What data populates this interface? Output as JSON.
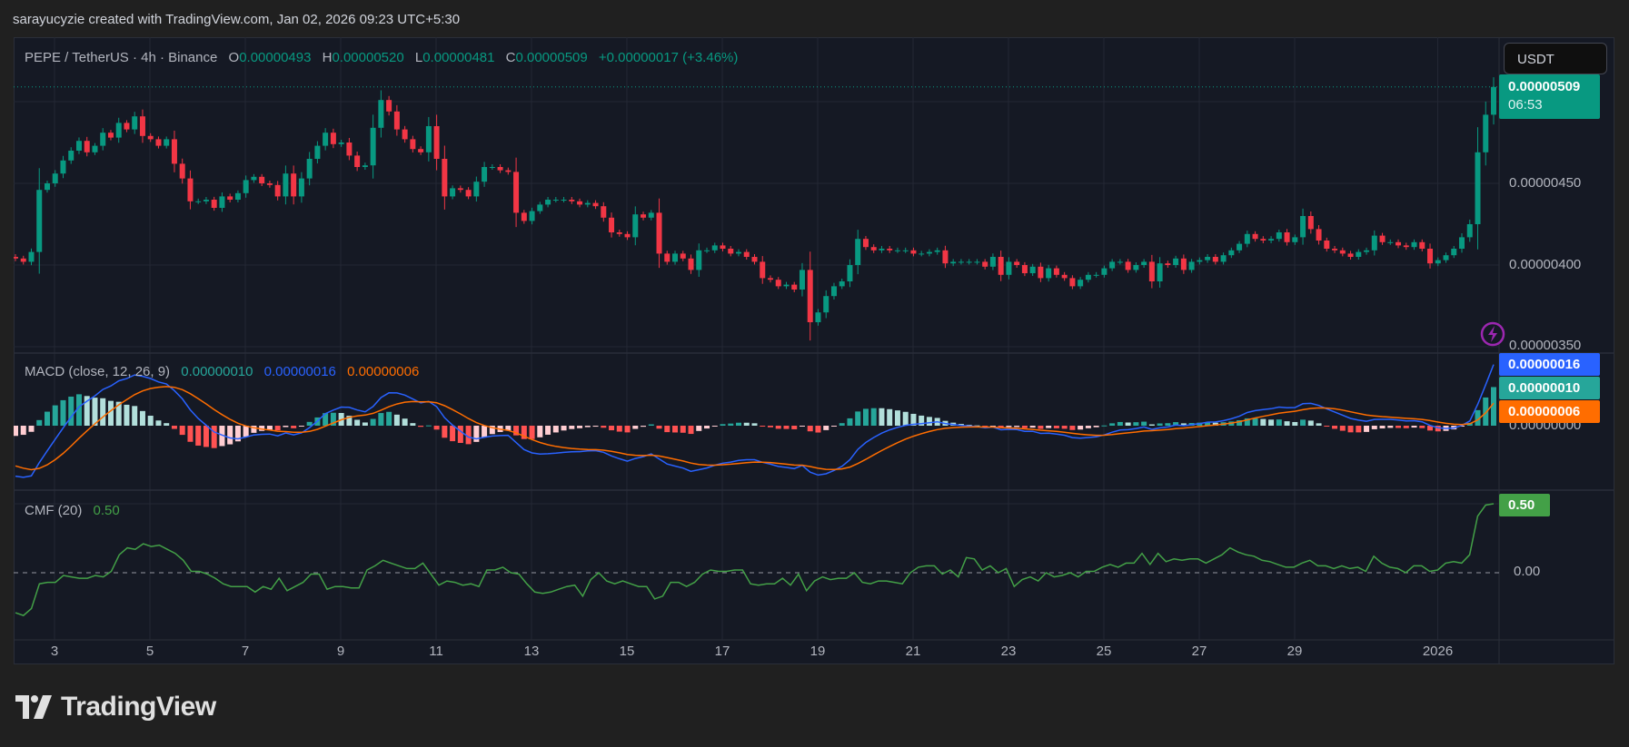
{
  "credit": "sarayucyzie created with TradingView.com, Jan 02, 2026 09:23 UTC+5:30",
  "legend": {
    "symbol": "PEPE / TetherUS · 4h · Binance",
    "o_label": "O",
    "o": "0.00000493",
    "h_label": "H",
    "h": "0.00000520",
    "l_label": "L",
    "l": "0.00000481",
    "c_label": "C",
    "c": "0.00000509",
    "change": "+0.00000017 (+3.46%)"
  },
  "currency_button": "USDT",
  "last_price": {
    "value": "0.00000509",
    "countdown": "06:53"
  },
  "price_axis": [
    "0.00000450",
    "0.00000400",
    "0.00000350"
  ],
  "macd": {
    "title": "MACD (close, 12, 26, 9)",
    "histogram": "0.00000010",
    "macd": "0.00000016",
    "signal": "0.00000006",
    "axis_zero": "0.00000000"
  },
  "cmf": {
    "title": "CMF (20)",
    "value": "0.50",
    "axis_zero": "0.00"
  },
  "time_axis": [
    "3",
    "5",
    "7",
    "9",
    "11",
    "13",
    "15",
    "17",
    "19",
    "21",
    "23",
    "25",
    "27",
    "29",
    "2026"
  ],
  "logo": "TradingView",
  "colors": {
    "up": "#089981",
    "down": "#f23645",
    "macd": "#2962ff",
    "signal": "#ff6d00",
    "hist_up_strong": "#26a69a",
    "hist_up_weak": "#b2dfdb",
    "hist_down_weak": "#ffcdd2",
    "hist_down_strong": "#ff5252",
    "cmf": "#43a047",
    "background": "#151924",
    "grid": "#232734",
    "alert": "#9c27b0"
  },
  "chart_data": [
    {
      "type": "candlestick",
      "interval": "4h",
      "x_range": [
        "Dec 2, 2025",
        "Jan 2, 2026"
      ],
      "ylim": [
        3.4e-06,
        5.3e-06
      ],
      "first_open": 4.05e-06,
      "close": [
        4.04e-06,
        4.02e-06,
        4.08e-06,
        4.46e-06,
        4.5e-06,
        4.56e-06,
        4.64e-06,
        4.7e-06,
        4.76e-06,
        4.69e-06,
        4.73e-06,
        4.81e-06,
        4.78e-06,
        4.87e-06,
        4.83e-06,
        4.91e-06,
        4.79e-06,
        4.77e-06,
        4.73e-06,
        4.77e-06,
        4.62e-06,
        4.53e-06,
        4.39e-06,
        4.39e-06,
        4.4e-06,
        4.35e-06,
        4.42e-06,
        4.4e-06,
        4.44e-06,
        4.52e-06,
        4.54e-06,
        4.5e-06,
        4.49e-06,
        4.42e-06,
        4.56e-06,
        4.42e-06,
        4.53e-06,
        4.65e-06,
        4.73e-06,
        4.81e-06,
        4.74e-06,
        4.75e-06,
        4.67e-06,
        4.6e-06,
        4.61e-06,
        4.84e-06,
        5.01e-06,
        4.94e-06,
        4.83e-06,
        4.77e-06,
        4.71e-06,
        4.69e-06,
        4.85e-06,
        4.65e-06,
        4.42e-06,
        4.47e-06,
        4.46e-06,
        4.42e-06,
        4.51e-06,
        4.6e-06,
        4.6e-06,
        4.58e-06,
        4.57e-06,
        4.32e-06,
        4.27e-06,
        4.33e-06,
        4.37e-06,
        4.4e-06,
        4.4e-06,
        4.4e-06,
        4.39e-06,
        4.37e-06,
        4.38e-06,
        4.36e-06,
        4.29e-06,
        4.2e-06,
        4.19e-06,
        4.17e-06,
        4.31e-06,
        4.29e-06,
        4.32e-06,
        4.07e-06,
        4.02e-06,
        4.07e-06,
        4.04e-06,
        3.97e-06,
        4.09e-06,
        4.09e-06,
        4.12e-06,
        4.1e-06,
        4.07e-06,
        4.08e-06,
        4.05e-06,
        4.02e-06,
        3.92e-06,
        3.91e-06,
        3.87e-06,
        3.88e-06,
        3.85e-06,
        3.97e-06,
        3.65e-06,
        3.71e-06,
        3.81e-06,
        3.87e-06,
        3.9e-06,
        4e-06,
        4.16e-06,
        4.11e-06,
        4.09e-06,
        4.1e-06,
        4.09e-06,
        4.09e-06,
        4.09e-06,
        4.07e-06,
        4.07e-06,
        4.08e-06,
        4.09e-06,
        4.01e-06,
        4.02e-06,
        4.02e-06,
        4.02e-06,
        4.02e-06,
        3.99e-06,
        4.05e-06,
        3.94e-06,
        4.02e-06,
        4e-06,
        3.95e-06,
        3.99e-06,
        3.92e-06,
        3.98e-06,
        3.94e-06,
        3.92e-06,
        3.87e-06,
        3.91e-06,
        3.94e-06,
        3.94e-06,
        3.98e-06,
        4.02e-06,
        4.02e-06,
        3.97e-06,
        4e-06,
        4.02e-06,
        3.9e-06,
        4.01e-06,
        4e-06,
        4.04e-06,
        3.97e-06,
        4.02e-06,
        4.03e-06,
        4.05e-06,
        4.02e-06,
        4.06e-06,
        4.09e-06,
        4.13e-06,
        4.19e-06,
        4.16e-06,
        4.15e-06,
        4.16e-06,
        4.2e-06,
        4.14e-06,
        4.17e-06,
        4.3e-06,
        4.22e-06,
        4.15e-06,
        4.1e-06,
        4.09e-06,
        4.07e-06,
        4.05e-06,
        4.08e-06,
        4.09e-06,
        4.18e-06,
        4.14e-06,
        4.14e-06,
        4.12e-06,
        4.11e-06,
        4.14e-06,
        4.1e-06,
        4.01e-06,
        4.03e-06,
        4.06e-06,
        4.1e-06,
        4.17e-06,
        4.25e-06,
        4.69e-06,
        4.92e-06,
        5.09e-06
      ]
    },
    {
      "type": "line",
      "indicator": "MACD (close, 12, 26, 9)",
      "derived_from": "close",
      "last": {
        "macd": 1.6e-07,
        "signal": 6e-08,
        "histogram": 1e-07
      }
    },
    {
      "type": "line",
      "indicator": "CMF (20)",
      "zero_line": 0,
      "values": [
        -0.29,
        -0.31,
        -0.26,
        -0.08,
        -0.07,
        -0.07,
        -0.02,
        -0.03,
        -0.04,
        -0.04,
        -0.02,
        -0.03,
        0.01,
        0.13,
        0.18,
        0.17,
        0.21,
        0.19,
        0.2,
        0.17,
        0.14,
        0.09,
        0.01,
        0.01,
        -0.01,
        -0.04,
        -0.08,
        -0.1,
        -0.1,
        -0.1,
        -0.14,
        -0.1,
        -0.12,
        -0.04,
        -0.13,
        -0.1,
        -0.07,
        -0.01,
        -0.01,
        -0.12,
        -0.1,
        -0.1,
        -0.11,
        -0.11,
        0.02,
        0.05,
        0.09,
        0.07,
        0.05,
        0.03,
        0.03,
        0.07,
        -0.01,
        -0.09,
        -0.06,
        -0.07,
        -0.09,
        -0.08,
        -0.1,
        0.02,
        0.02,
        0.04,
        0.0,
        -0.01,
        -0.08,
        -0.14,
        -0.15,
        -0.14,
        -0.12,
        -0.1,
        -0.09,
        -0.17,
        -0.05,
        0.0,
        -0.06,
        -0.08,
        -0.06,
        -0.08,
        -0.1,
        -0.1,
        -0.19,
        -0.17,
        -0.07,
        -0.07,
        -0.1,
        -0.07,
        -0.01,
        0.02,
        0.01,
        0.01,
        0.02,
        0.02,
        -0.08,
        -0.09,
        -0.08,
        -0.08,
        -0.04,
        -0.09,
        -0.01,
        -0.13,
        -0.06,
        -0.03,
        -0.05,
        -0.04,
        -0.04,
        0.0,
        -0.07,
        -0.08,
        -0.06,
        -0.06,
        -0.07,
        -0.08,
        0.0,
        0.04,
        0.05,
        0.05,
        -0.01,
        0.02,
        -0.03,
        0.11,
        0.1,
        0.02,
        0.05,
        0.0,
        0.03,
        -0.1,
        -0.05,
        -0.03,
        -0.06,
        0.0,
        -0.03,
        -0.02,
        0.0,
        -0.03,
        0.01,
        0.01,
        0.04,
        0.06,
        0.04,
        0.07,
        0.07,
        0.14,
        0.06,
        0.14,
        0.08,
        0.1,
        0.09,
        0.1,
        0.1,
        0.07,
        0.1,
        0.13,
        0.18,
        0.15,
        0.13,
        0.12,
        0.09,
        0.08,
        0.06,
        0.04,
        0.04,
        0.07,
        0.09,
        0.05,
        0.05,
        0.03,
        0.05,
        0.03,
        0.04,
        0.01,
        0.12,
        0.07,
        0.04,
        0.03,
        0.0,
        0.05,
        0.05,
        0.01,
        0.02,
        0.07,
        0.08,
        0.07,
        0.13,
        0.41,
        0.49,
        0.5
      ]
    }
  ]
}
